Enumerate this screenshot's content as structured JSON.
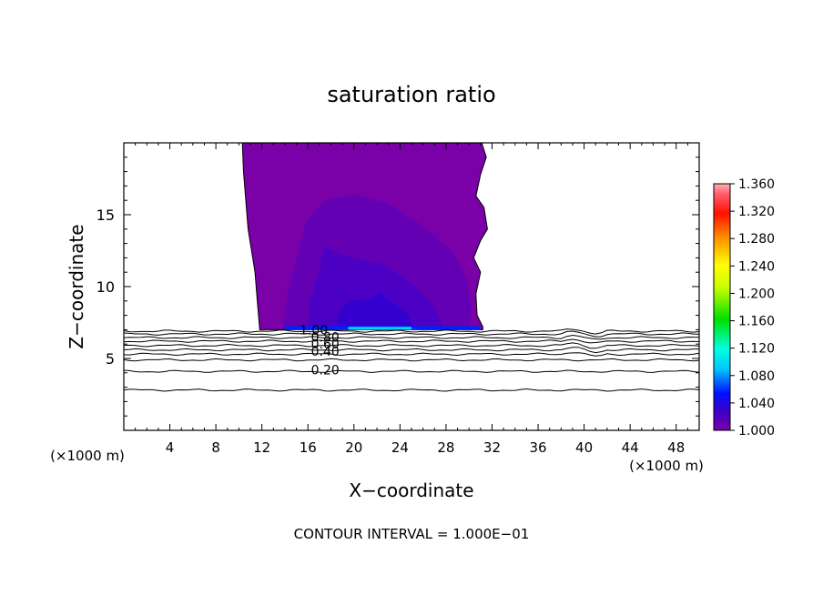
{
  "chart_data": {
    "type": "heatmap",
    "title": "saturation ratio",
    "xlabel": "X−coordinate",
    "ylabel": "Z−coordinate",
    "x_unit_left": "(×1000 m)",
    "x_unit_right": "(×1000 m)",
    "xlim": [
      0,
      50
    ],
    "ylim": [
      0,
      20
    ],
    "x_ticks": [
      4,
      8,
      12,
      16,
      20,
      24,
      28,
      32,
      36,
      40,
      44,
      48
    ],
    "y_ticks": [
      5,
      10,
      15
    ],
    "footer": "CONTOUR INTERVAL = 1.000E−01",
    "colorbar": {
      "min": 1.0,
      "max": 1.36,
      "labels": [
        "1.360",
        "1.320",
        "1.280",
        "1.240",
        "1.200",
        "1.160",
        "1.120",
        "1.080",
        "1.040",
        "1.000"
      ]
    },
    "contour_labels": [
      {
        "text": "1.00",
        "x": 16.5,
        "z": 7.0
      },
      {
        "text": "0.80",
        "x": 17.5,
        "z": 6.5
      },
      {
        "text": "0.60",
        "x": 17.5,
        "z": 6.0
      },
      {
        "text": "0.40",
        "x": 17.5,
        "z": 5.5
      },
      {
        "text": "0.20",
        "x": 17.5,
        "z": 4.2
      }
    ],
    "contour_levels_z": [
      2.8,
      4.1,
      4.9,
      5.3,
      5.6,
      5.9,
      6.2,
      6.45,
      6.7,
      6.9
    ],
    "supersaturated_region": {
      "bottom_z": 7.0,
      "left_boundary": [
        [
          11.8,
          7.1
        ],
        [
          11.6,
          9.0
        ],
        [
          11.4,
          11.0
        ],
        [
          11.1,
          12.5
        ],
        [
          10.8,
          14.0
        ],
        [
          10.6,
          16.0
        ],
        [
          10.4,
          18.0
        ],
        [
          10.3,
          20.0
        ]
      ],
      "right_boundary": [
        [
          31.2,
          7.2
        ],
        [
          30.7,
          8.0
        ],
        [
          30.6,
          9.5
        ],
        [
          31.0,
          11.0
        ],
        [
          30.4,
          12.0
        ],
        [
          31.0,
          13.2
        ],
        [
          31.6,
          14.0
        ],
        [
          31.3,
          15.5
        ],
        [
          30.6,
          16.3
        ],
        [
          31.0,
          17.8
        ],
        [
          31.5,
          19.0
        ],
        [
          31.1,
          20.0
        ]
      ]
    }
  }
}
